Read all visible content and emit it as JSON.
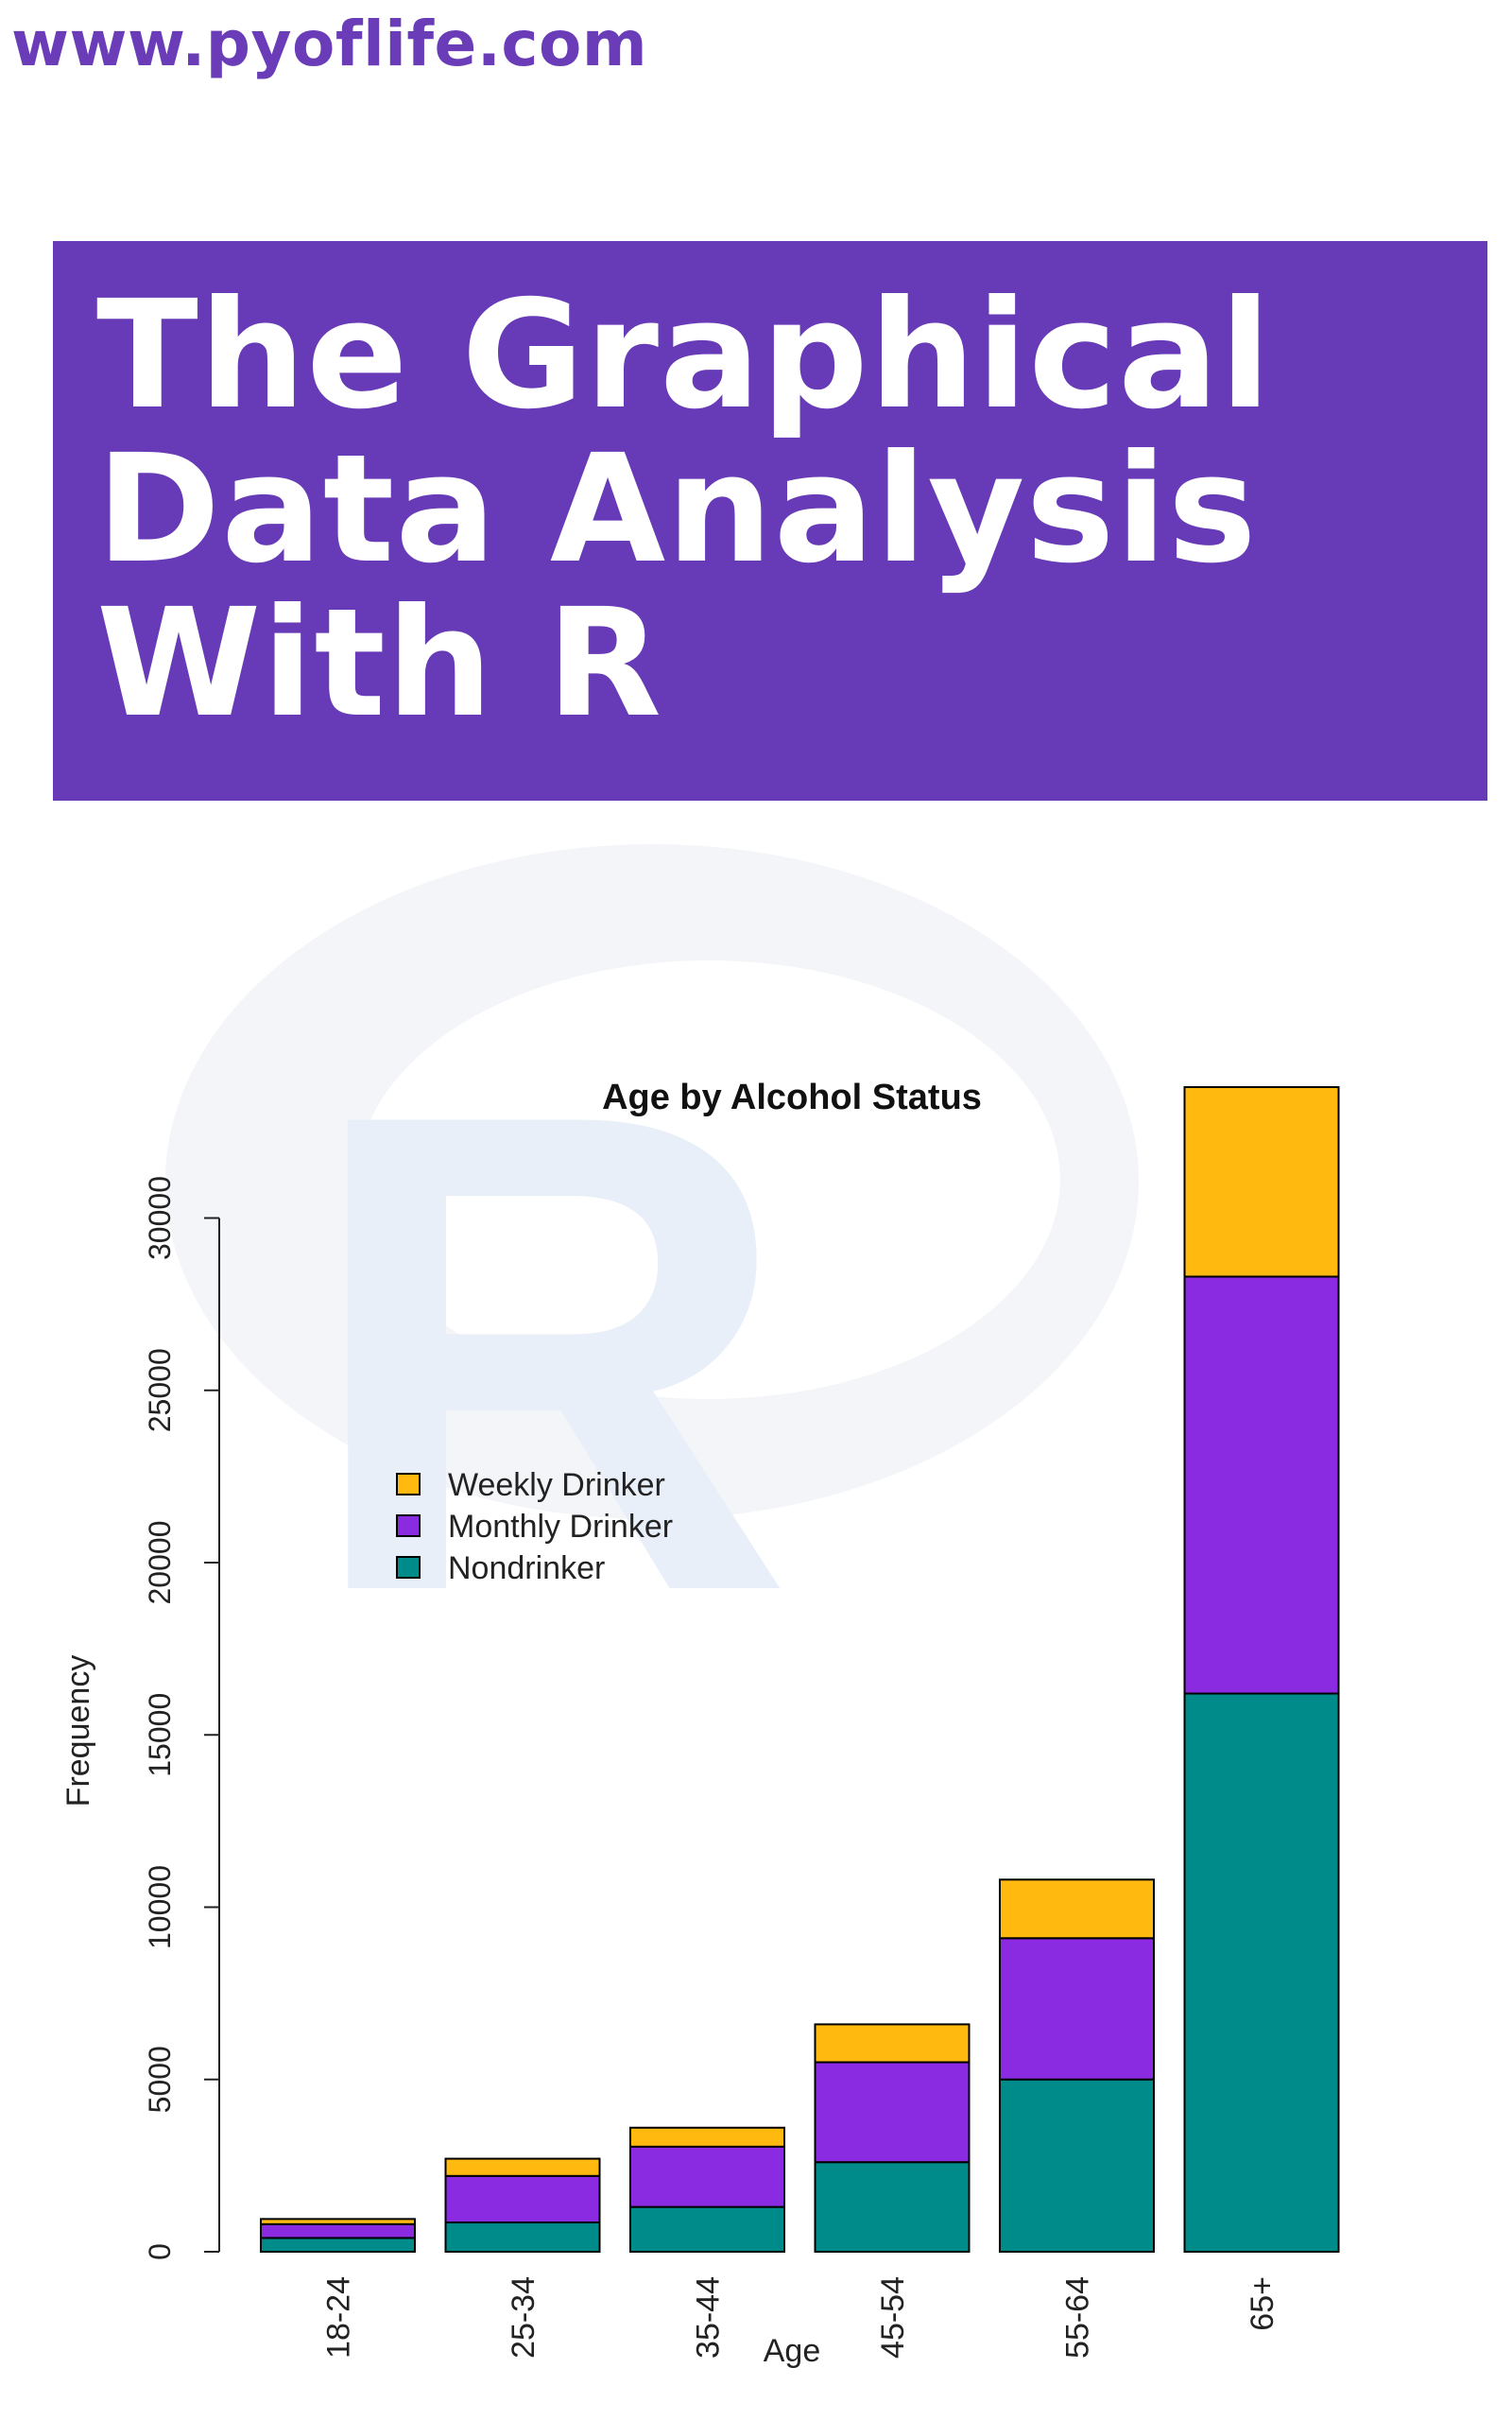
{
  "site": {
    "url": "www.pyoflife.com"
  },
  "hero": {
    "title": "The Graphical\nData Analysis\nWith R"
  },
  "watermark": {
    "letter": "R",
    "ring_color": "#f3f5f8",
    "letter_color": "#e9eff8"
  },
  "chart_data": {
    "type": "bar",
    "stacked": true,
    "title": "Age by Alcohol Status",
    "xlabel": "Age",
    "ylabel": "Frequency",
    "ylim": [
      0,
      33800
    ],
    "yticks": [
      0,
      5000,
      10000,
      15000,
      20000,
      25000,
      30000
    ],
    "ytick_labels": [
      "0",
      "5000",
      "10000",
      "15000",
      "20000",
      "25000",
      "30000"
    ],
    "categories": [
      "18-24",
      "25-34",
      "35-44",
      "45-54",
      "55-64",
      "65+"
    ],
    "series": [
      {
        "name": "Nondrinker",
        "color": "#008b8b",
        "values": [
          400,
          850,
          1300,
          2600,
          5000,
          16200
        ]
      },
      {
        "name": "Monthly Drinker",
        "color": "#8a2be2",
        "values": [
          400,
          1350,
          1750,
          2900,
          4100,
          12100
        ]
      },
      {
        "name": "Weekly Drinker",
        "color": "#ffb90f",
        "values": [
          150,
          500,
          550,
          1100,
          1700,
          5500
        ]
      }
    ],
    "legend": {
      "position": "upper-left",
      "order": [
        "Weekly Drinker",
        "Monthly Drinker",
        "Nondrinker"
      ]
    },
    "grid": false
  }
}
